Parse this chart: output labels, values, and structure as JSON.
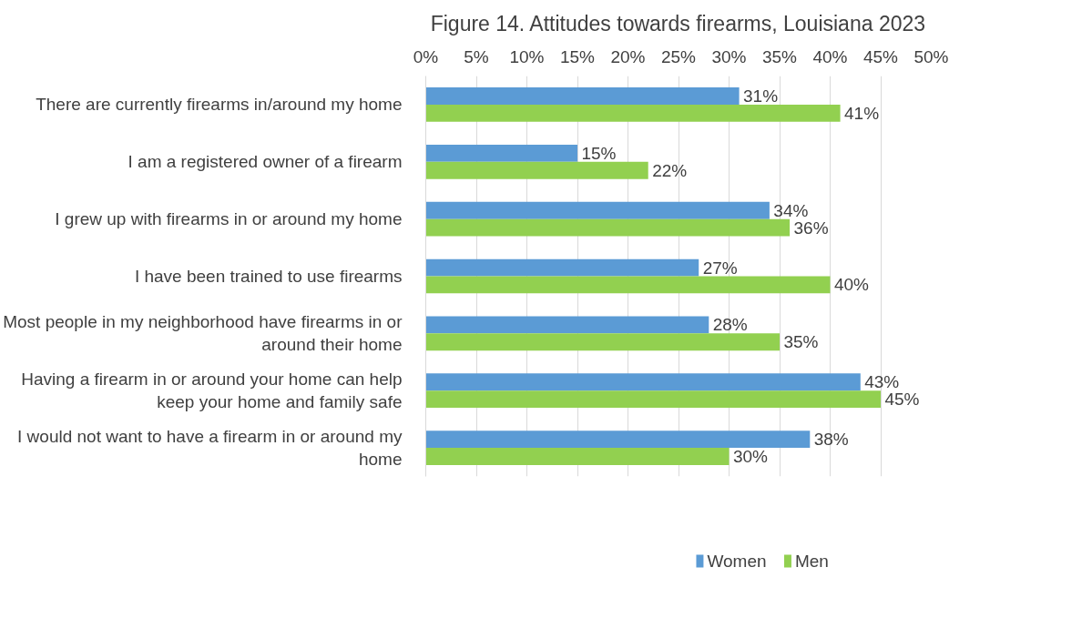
{
  "chart_data": {
    "type": "bar",
    "orientation": "horizontal",
    "title": "Figure 14. Attitudes towards firearms, Louisiana 2023",
    "categories": [
      "There are currently firearms in/around my home",
      "I am a registered owner of a firearm",
      "I grew up with firearms in or around my home",
      "I have been trained to use firearms",
      "Most people in my neighborhood have firearms in or around their home",
      "Having a firearm in or around your home can help keep your home and family safe",
      "I would not want to have a firearm in or around my home"
    ],
    "series": [
      {
        "name": "Women",
        "color": "#5b9bd5",
        "values": [
          31,
          15,
          34,
          27,
          28,
          43,
          38
        ],
        "value_labels": [
          "31%",
          "15%",
          "34%",
          "27%",
          "28%",
          "43%",
          "38%"
        ]
      },
      {
        "name": "Men",
        "color": "#92d050",
        "values": [
          41,
          22,
          36,
          40,
          35,
          45,
          30
        ],
        "value_labels": [
          "41%",
          "22%",
          "36%",
          "40%",
          "35%",
          "45%",
          "30%"
        ]
      }
    ],
    "xlim": [
      0,
      50
    ],
    "xticks": [
      {
        "value": 0,
        "label": "0%"
      },
      {
        "value": 5,
        "label": "5%"
      },
      {
        "value": 10,
        "label": "10%"
      },
      {
        "value": 15,
        "label": "15%"
      },
      {
        "value": 20,
        "label": "20%"
      },
      {
        "value": 25,
        "label": "25%"
      },
      {
        "value": 30,
        "label": "30%"
      },
      {
        "value": 35,
        "label": "35%"
      },
      {
        "value": 40,
        "label": "40%"
      },
      {
        "value": 45,
        "label": "45%"
      },
      {
        "value": 50,
        "label": "50%"
      }
    ],
    "grid": "x",
    "legend": "bottom"
  }
}
